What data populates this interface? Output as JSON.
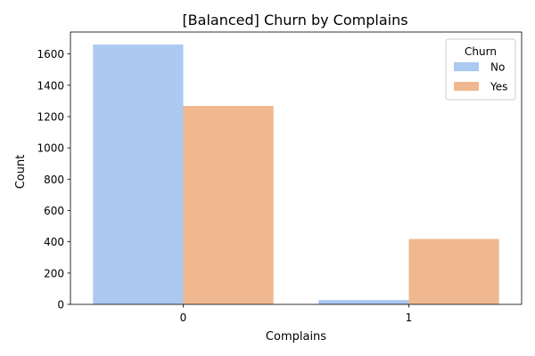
{
  "chart_data": {
    "type": "bar",
    "title": "[Balanced] Churn by Complains",
    "xlabel": "Complains",
    "ylabel": "Count",
    "categories": [
      "0",
      "1"
    ],
    "series": [
      {
        "name": "No",
        "values": [
          1660,
          28
        ],
        "color": "#abc9f1"
      },
      {
        "name": "Yes",
        "values": [
          1268,
          418
        ],
        "color": "#f0b890"
      }
    ],
    "ylim": [
      0,
      1740
    ],
    "yticks": [
      0,
      200,
      400,
      600,
      800,
      1000,
      1200,
      1400,
      1600
    ],
    "grid": false,
    "legend": {
      "title": "Churn",
      "placement": "top-right"
    }
  }
}
